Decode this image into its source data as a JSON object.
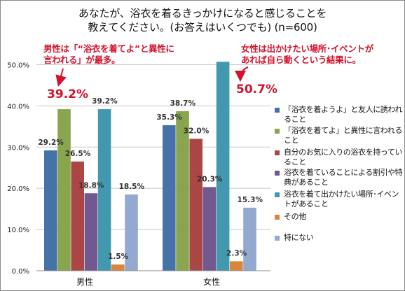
{
  "title_line1": "あなたが、浴衣を着るきっかけになると感じることを",
  "title_line2": "教えてください。(お答えはいくつでも) (n=600)",
  "annotations": {
    "male_note_line1": "男性は「“浴衣を着てよ”と異性に",
    "male_note_line2": "言われる」が最多。",
    "male_highlight": "39.2%",
    "female_note_line1": "女性は出かけたい場所･イベントが",
    "female_note_line2": "あれば自ら動くという結果に。",
    "female_highlight": "50.7%"
  },
  "colors": {
    "accent_red": "#d3122c",
    "series": [
      "#4572a7",
      "#89a54e",
      "#aa4643",
      "#71588f",
      "#4198af",
      "#db843d",
      "#93a9cf"
    ]
  },
  "chart_data": {
    "type": "bar",
    "categories": [
      "男性",
      "女性"
    ],
    "ylim": [
      0,
      55
    ],
    "yticks": [
      "0.0%",
      "10.0%",
      "20.0%",
      "30.0%",
      "40.0%",
      "50.0%"
    ],
    "legend_position": "right",
    "grid": true,
    "series": [
      {
        "name": "「浴衣を着ようよ」と友人に誘われること",
        "values": [
          29.2,
          35.3
        ],
        "labels": [
          "29.2%",
          "35.3%"
        ]
      },
      {
        "name": "「浴衣を着てよ」と異性に言われること",
        "values": [
          39.2,
          38.7
        ],
        "labels": [
          "",
          "38.7%"
        ]
      },
      {
        "name": "自分のお気に入りの浴衣を持っていること",
        "values": [
          26.5,
          32.0
        ],
        "labels": [
          "26.5%",
          "32.0%"
        ]
      },
      {
        "name": "浴衣を着ていることによる割引や特典があること",
        "values": [
          18.8,
          20.3
        ],
        "labels": [
          "18.8%",
          "20.3%"
        ]
      },
      {
        "name": "浴衣を着て出かけたい場所･イベントがあること",
        "values": [
          39.2,
          50.7
        ],
        "labels": [
          "39.2%",
          ""
        ]
      },
      {
        "name": "その他",
        "values": [
          1.5,
          2.3
        ],
        "labels": [
          "1.5%",
          "2.3%"
        ]
      },
      {
        "name": "特にない",
        "values": [
          18.5,
          15.3
        ],
        "labels": [
          "18.5%",
          "15.3%"
        ]
      }
    ]
  }
}
